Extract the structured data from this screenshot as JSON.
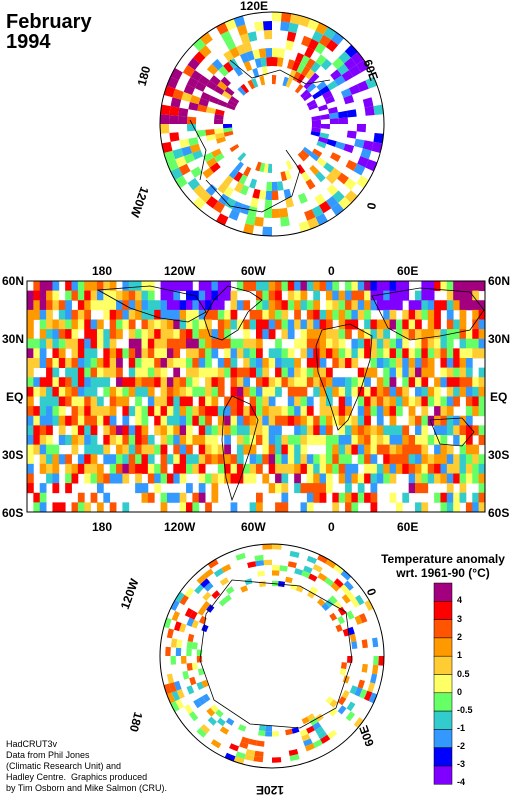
{
  "title": {
    "line1": "February",
    "line2": "1994"
  },
  "north_polar": {
    "labels": {
      "top": "120E",
      "upper_left": "180",
      "upper_right": "60E",
      "right": "0",
      "left": "120W"
    }
  },
  "global_map": {
    "top_lon": [
      "180",
      "120W",
      "60W",
      "0",
      "60E"
    ],
    "bottom_lon": [
      "180",
      "120W",
      "60W",
      "0",
      "60E"
    ],
    "left_lat": [
      "60N",
      "30N",
      "EQ",
      "30S",
      "60S"
    ],
    "right_lat": [
      "60N",
      "30N",
      "EQ",
      "30S",
      "60S"
    ]
  },
  "south_polar": {
    "labels": {
      "upper_left": "120W",
      "right": "0",
      "lower_left": "180",
      "lower_right": "60E",
      "bottom": "120E"
    }
  },
  "legend": {
    "title_line1": "Temperature anomaly",
    "title_line2": "wrt. 1961-90  (°C)",
    "labels": [
      "4",
      "3",
      "2",
      "1",
      "0.5",
      "0",
      "-0.5",
      "-1",
      "-2",
      "-3",
      "-4"
    ],
    "colors": [
      "#a3007f",
      "#ff0000",
      "#ff5500",
      "#ff9900",
      "#ffcc33",
      "#ffff66",
      "#66ff66",
      "#33cccc",
      "#3399ff",
      "#0000ff",
      "#8000ff"
    ]
  },
  "credits": {
    "line1": "HadCRUT3v",
    "line2": "Data from Phil Jones",
    "line3": "(Climatic Research Unit) and",
    "line4": "Hadley Centre.  Graphics produced",
    "line5": "by Tim Osborn and Mike Salmon (CRU)."
  }
}
